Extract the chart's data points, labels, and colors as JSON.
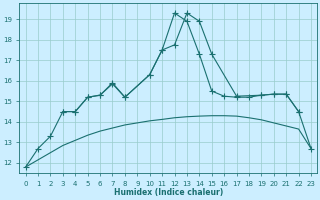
{
  "color": "#1a7070",
  "bg_color": "#cceeff",
  "grid_color": "#99cccc",
  "xlabel": "Humidex (Indice chaleur)",
  "xlim": [
    -0.5,
    23.5
  ],
  "ylim": [
    11.5,
    19.8
  ],
  "yticks": [
    12,
    13,
    14,
    15,
    16,
    17,
    18,
    19
  ],
  "xticks": [
    0,
    1,
    2,
    3,
    4,
    5,
    6,
    7,
    8,
    9,
    10,
    11,
    12,
    13,
    14,
    15,
    16,
    17,
    18,
    19,
    20,
    21,
    22,
    23
  ],
  "line_spiky": {
    "x": [
      0,
      1,
      2,
      3,
      4,
      5,
      6,
      7,
      8,
      10,
      11,
      12,
      13,
      14,
      15,
      17,
      19,
      20,
      21,
      22
    ],
    "y": [
      11.8,
      12.7,
      13.3,
      14.5,
      14.5,
      15.2,
      15.3,
      15.9,
      15.2,
      16.3,
      17.5,
      17.75,
      19.3,
      18.9,
      17.3,
      15.25,
      15.3,
      15.35,
      15.35,
      14.5
    ]
  },
  "line_middle": {
    "x": [
      3,
      4,
      5,
      6,
      7,
      8,
      10,
      11,
      12,
      13,
      14,
      15,
      16,
      17,
      18,
      19,
      20,
      21,
      22,
      23
    ],
    "y": [
      14.5,
      14.5,
      15.2,
      15.3,
      15.85,
      15.2,
      16.3,
      17.5,
      19.3,
      18.9,
      17.3,
      15.5,
      15.25,
      15.2,
      15.2,
      15.3,
      15.35,
      15.35,
      14.5,
      12.7
    ]
  },
  "line_bottom": {
    "x": [
      0,
      1,
      2,
      3,
      4,
      5,
      6,
      7,
      8,
      9,
      10,
      11,
      12,
      13,
      14,
      15,
      16,
      17,
      18,
      19,
      20,
      21,
      22,
      23
    ],
    "y": [
      11.8,
      12.15,
      12.5,
      12.85,
      13.1,
      13.35,
      13.55,
      13.7,
      13.85,
      13.95,
      14.05,
      14.12,
      14.2,
      14.25,
      14.28,
      14.3,
      14.3,
      14.28,
      14.2,
      14.1,
      13.95,
      13.8,
      13.65,
      12.7
    ]
  }
}
